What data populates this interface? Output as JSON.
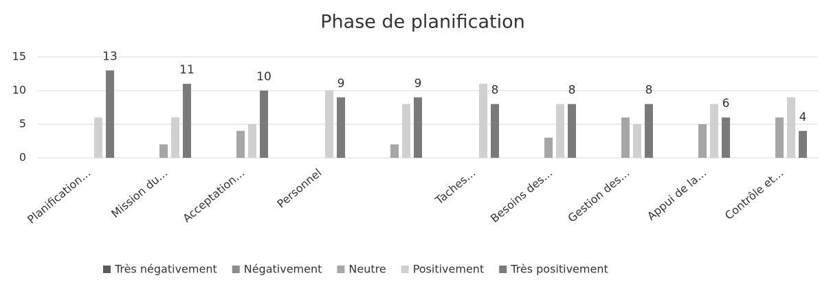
{
  "chart_data": {
    "type": "bar",
    "title": "Phase de planification",
    "categories": [
      "Planification…",
      "Mission du…",
      "Acceptation…",
      "Personnel",
      null,
      "Taches…",
      "Besoins des…",
      "Gestion des…",
      "Appui de la…",
      "Contrôle et…"
    ],
    "series": [
      {
        "name": "Très négativement",
        "color": "#5a5a5a",
        "values": [
          0,
          0,
          0,
          0,
          0,
          0,
          0,
          0,
          0,
          0
        ]
      },
      {
        "name": "Négativement",
        "color": "#8c8c8c",
        "values": [
          0,
          0,
          0,
          0,
          0,
          0,
          0,
          0,
          0,
          0
        ]
      },
      {
        "name": "Neutre",
        "color": "#a6a6a6",
        "values": [
          0,
          2,
          4,
          0,
          2,
          0,
          3,
          6,
          5,
          6
        ]
      },
      {
        "name": "Positivement",
        "color": "#d0d0d0",
        "values": [
          6,
          6,
          5,
          10,
          8,
          11,
          8,
          5,
          8,
          9
        ]
      },
      {
        "name": "Très positivement",
        "color": "#7a7a7a",
        "values": [
          13,
          11,
          10,
          9,
          9,
          8,
          8,
          8,
          6,
          4
        ],
        "show_labels": true
      }
    ],
    "ylim": [
      0,
      15
    ],
    "yticks": [
      0,
      5,
      10,
      15
    ],
    "grid": true,
    "legend": "bottom"
  }
}
